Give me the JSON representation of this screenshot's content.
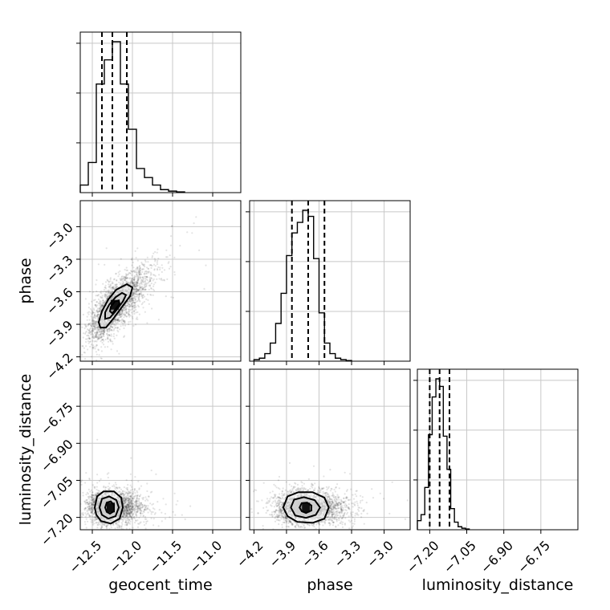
{
  "chart_data": {
    "type": "corner",
    "parameters": [
      "geocent_time",
      "phase",
      "luminosity_distance"
    ],
    "axis_labels": {
      "x": [
        "geocent_time",
        "phase",
        "luminosity_distance"
      ],
      "y": [
        "",
        "phase",
        "luminosity_distance"
      ]
    },
    "grid": true,
    "ranges": {
      "geocent_time": [
        -12.65,
        -10.65
      ],
      "phase": [
        -4.24,
        -2.76
      ],
      "luminosity_distance": [
        -7.25,
        -6.6
      ]
    },
    "ticks": {
      "geocent_time": {
        "values": [
          -12.5,
          -12.0,
          -11.5,
          -11.0
        ],
        "labels": [
          "−12.5",
          "−12.0",
          "−11.5",
          "−11.0"
        ]
      },
      "phase": {
        "values": [
          -4.2,
          -3.9,
          -3.6,
          -3.3,
          -3.0
        ],
        "labels": [
          "−4.2",
          "−3.9",
          "−3.6",
          "−3.3",
          "−3.0"
        ]
      },
      "luminosity_distance": {
        "values": [
          -7.2,
          -7.05,
          -6.9,
          -6.75
        ],
        "labels": [
          "−7.20",
          "−7.05",
          "−6.90",
          "−6.75"
        ]
      }
    },
    "histograms": [
      {
        "parameter": "geocent_time",
        "bin_edges": [
          -12.65,
          -12.55,
          -12.45,
          -12.35,
          -12.25,
          -12.15,
          -12.05,
          -11.95,
          -11.85,
          -11.75,
          -11.65,
          -11.55,
          -11.45,
          -11.35
        ],
        "counts": [
          0.05,
          0.2,
          0.72,
          0.88,
          1.0,
          0.72,
          0.42,
          0.16,
          0.1,
          0.05,
          0.02,
          0.01,
          0.005
        ],
        "quantiles": [
          -12.38,
          -12.25,
          -12.07
        ]
      },
      {
        "parameter": "phase",
        "bin_edges": [
          -4.2,
          -4.15,
          -4.1,
          -4.05,
          -4.0,
          -3.95,
          -3.9,
          -3.85,
          -3.8,
          -3.75,
          -3.7,
          -3.65,
          -3.6,
          -3.55,
          -3.5,
          -3.45,
          -3.4,
          -3.35,
          -3.3
        ],
        "counts": [
          0.01,
          0.02,
          0.05,
          0.12,
          0.25,
          0.45,
          0.7,
          0.85,
          0.92,
          1.0,
          0.96,
          0.68,
          0.32,
          0.12,
          0.05,
          0.02,
          0.01,
          0.004
        ],
        "quantiles": [
          -3.85,
          -3.7,
          -3.55
        ]
      },
      {
        "parameter": "luminosity_distance",
        "bin_edges": [
          -7.25,
          -7.235,
          -7.22,
          -7.205,
          -7.19,
          -7.175,
          -7.16,
          -7.145,
          -7.13,
          -7.115,
          -7.1,
          -7.085,
          -7.07,
          -7.055,
          -7.04
        ],
        "counts": [
          0.06,
          0.1,
          0.28,
          0.63,
          0.88,
          1.0,
          0.95,
          0.62,
          0.4,
          0.14,
          0.05,
          0.02,
          0.01,
          0.005
        ],
        "quantiles": [
          -7.2,
          -7.16,
          -7.12
        ]
      }
    ],
    "pairs": [
      {
        "x": "geocent_time",
        "y": "phase",
        "center": [
          -12.22,
          -3.72
        ],
        "sigma": [
          0.17,
          0.16
        ],
        "correlation": 0.75,
        "contours": [
          [
            [
              -12.4,
              -3.93
            ],
            [
              -12.42,
              -3.88
            ],
            [
              -12.38,
              -3.78
            ],
            [
              -12.3,
              -3.67
            ],
            [
              -12.2,
              -3.58
            ],
            [
              -12.07,
              -3.53
            ],
            [
              -12.0,
              -3.56
            ],
            [
              -12.03,
              -3.64
            ],
            [
              -12.13,
              -3.74
            ],
            [
              -12.24,
              -3.85
            ],
            [
              -12.33,
              -3.93
            ]
          ],
          [
            [
              -12.34,
              -3.85
            ],
            [
              -12.34,
              -3.79
            ],
            [
              -12.29,
              -3.72
            ],
            [
              -12.21,
              -3.65
            ],
            [
              -12.13,
              -3.61
            ],
            [
              -12.08,
              -3.63
            ],
            [
              -12.12,
              -3.69
            ],
            [
              -12.2,
              -3.77
            ],
            [
              -12.28,
              -3.84
            ]
          ],
          [
            [
              -12.28,
              -3.78
            ],
            [
              -12.27,
              -3.74
            ],
            [
              -12.22,
              -3.69
            ],
            [
              -12.17,
              -3.68
            ],
            [
              -12.16,
              -3.71
            ],
            [
              -12.21,
              -3.76
            ],
            [
              -12.25,
              -3.8
            ]
          ]
        ]
      },
      {
        "x": "geocent_time",
        "y": "luminosity_distance",
        "center": [
          -12.27,
          -7.16
        ],
        "sigma": [
          0.15,
          0.033
        ],
        "correlation": 0.0,
        "contours": [
          [
            [
              -12.47,
              -7.16
            ],
            [
              -12.44,
              -7.115
            ],
            [
              -12.36,
              -7.095
            ],
            [
              -12.23,
              -7.095
            ],
            [
              -12.14,
              -7.12
            ],
            [
              -12.12,
              -7.16
            ],
            [
              -12.16,
              -7.205
            ],
            [
              -12.27,
              -7.225
            ],
            [
              -12.39,
              -7.215
            ],
            [
              -12.45,
              -7.19
            ]
          ],
          [
            [
              -12.41,
              -7.16
            ],
            [
              -12.38,
              -7.125
            ],
            [
              -12.29,
              -7.115
            ],
            [
              -12.2,
              -7.13
            ],
            [
              -12.17,
              -7.16
            ],
            [
              -12.21,
              -7.195
            ],
            [
              -12.3,
              -7.205
            ],
            [
              -12.38,
              -7.19
            ]
          ],
          [
            [
              -12.34,
              -7.16
            ],
            [
              -12.32,
              -7.14
            ],
            [
              -12.27,
              -7.135
            ],
            [
              -12.23,
              -7.15
            ],
            [
              -12.23,
              -7.175
            ],
            [
              -12.28,
              -7.185
            ],
            [
              -12.32,
              -7.178
            ]
          ]
        ]
      },
      {
        "x": "phase",
        "y": "luminosity_distance",
        "center": [
          -3.72,
          -7.16
        ],
        "sigma": [
          0.15,
          0.033
        ],
        "correlation": 0.0,
        "contours": [
          [
            [
              -3.93,
              -7.16
            ],
            [
              -3.89,
              -7.115
            ],
            [
              -3.79,
              -7.098
            ],
            [
              -3.66,
              -7.098
            ],
            [
              -3.55,
              -7.12
            ],
            [
              -3.51,
              -7.16
            ],
            [
              -3.55,
              -7.205
            ],
            [
              -3.66,
              -7.222
            ],
            [
              -3.8,
              -7.218
            ],
            [
              -3.89,
              -7.195
            ]
          ],
          [
            [
              -3.86,
              -7.16
            ],
            [
              -3.83,
              -7.128
            ],
            [
              -3.74,
              -7.118
            ],
            [
              -3.64,
              -7.13
            ],
            [
              -3.59,
              -7.16
            ],
            [
              -3.63,
              -7.19
            ],
            [
              -3.72,
              -7.202
            ],
            [
              -3.82,
              -7.192
            ]
          ],
          [
            [
              -3.78,
              -7.16
            ],
            [
              -3.76,
              -7.142
            ],
            [
              -3.71,
              -7.14
            ],
            [
              -3.67,
              -7.152
            ],
            [
              -3.67,
              -7.172
            ],
            [
              -3.72,
              -7.182
            ],
            [
              -3.76,
              -7.175
            ]
          ]
        ]
      }
    ]
  }
}
